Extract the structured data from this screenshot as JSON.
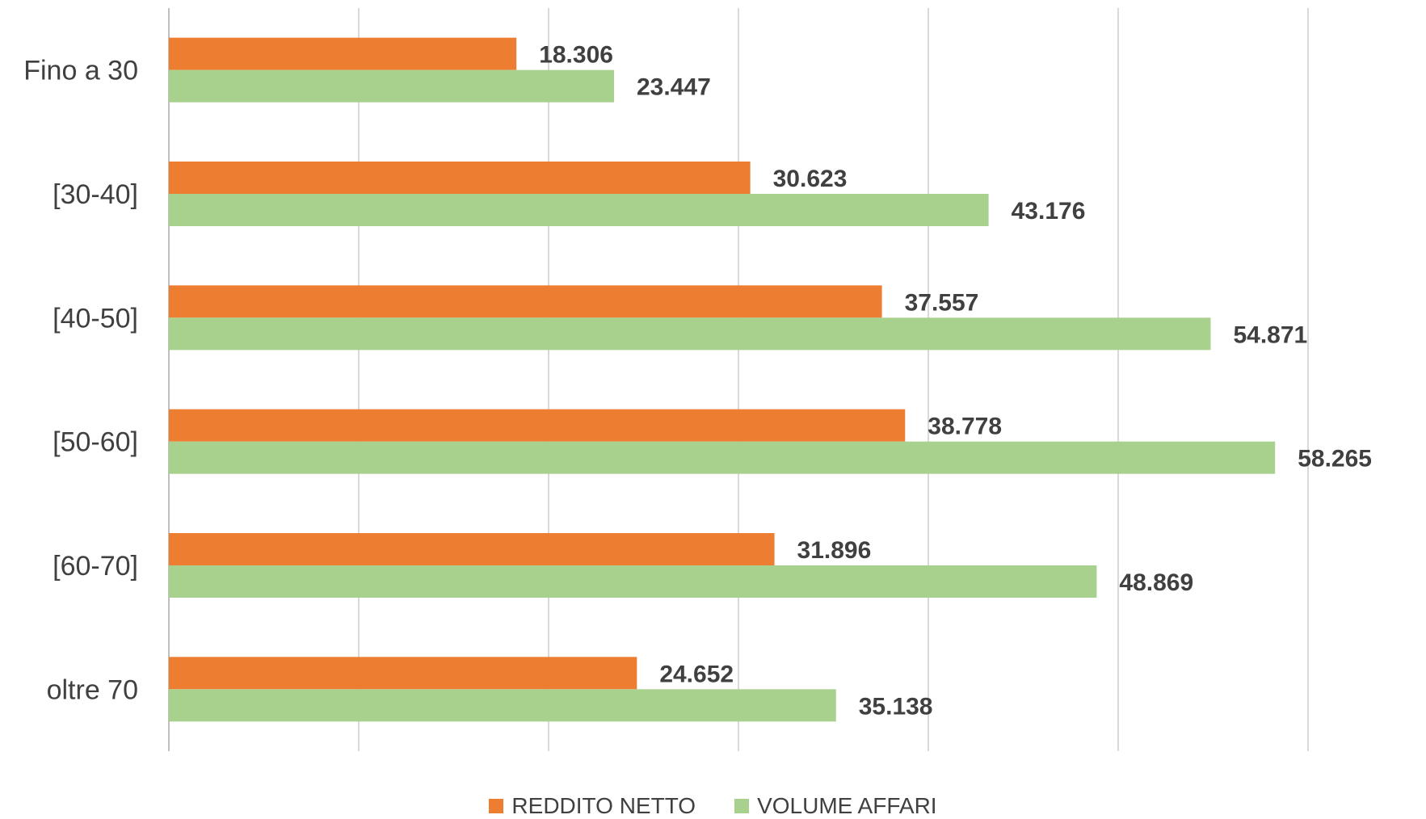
{
  "chart_data": {
    "type": "bar",
    "orientation": "horizontal",
    "categories": [
      "Fino a 30",
      "[30-40]",
      "[40-50]",
      "[50-60]",
      "[60-70]",
      "oltre 70"
    ],
    "series": [
      {
        "name": "REDDITO NETTO",
        "color": "#ED7D31",
        "values": [
          18306,
          30623,
          37557,
          38778,
          31896,
          24652
        ],
        "labels": [
          "18.306",
          "30.623",
          "37.557",
          "38.778",
          "31.896",
          "24.652"
        ]
      },
      {
        "name": "VOLUME AFFARI",
        "color": "#A9D18E",
        "values": [
          23447,
          43176,
          54871,
          58265,
          48869,
          35138
        ],
        "labels": [
          "23.447",
          "43.176",
          "54.871",
          "58.265",
          "48.869",
          "35.138"
        ]
      }
    ],
    "xlim": [
      0,
      60000
    ],
    "gridline_step": 10000,
    "grid": true,
    "legend_position": "bottom",
    "gridline_color": "#D9D9D9",
    "text_color": "#404040"
  }
}
